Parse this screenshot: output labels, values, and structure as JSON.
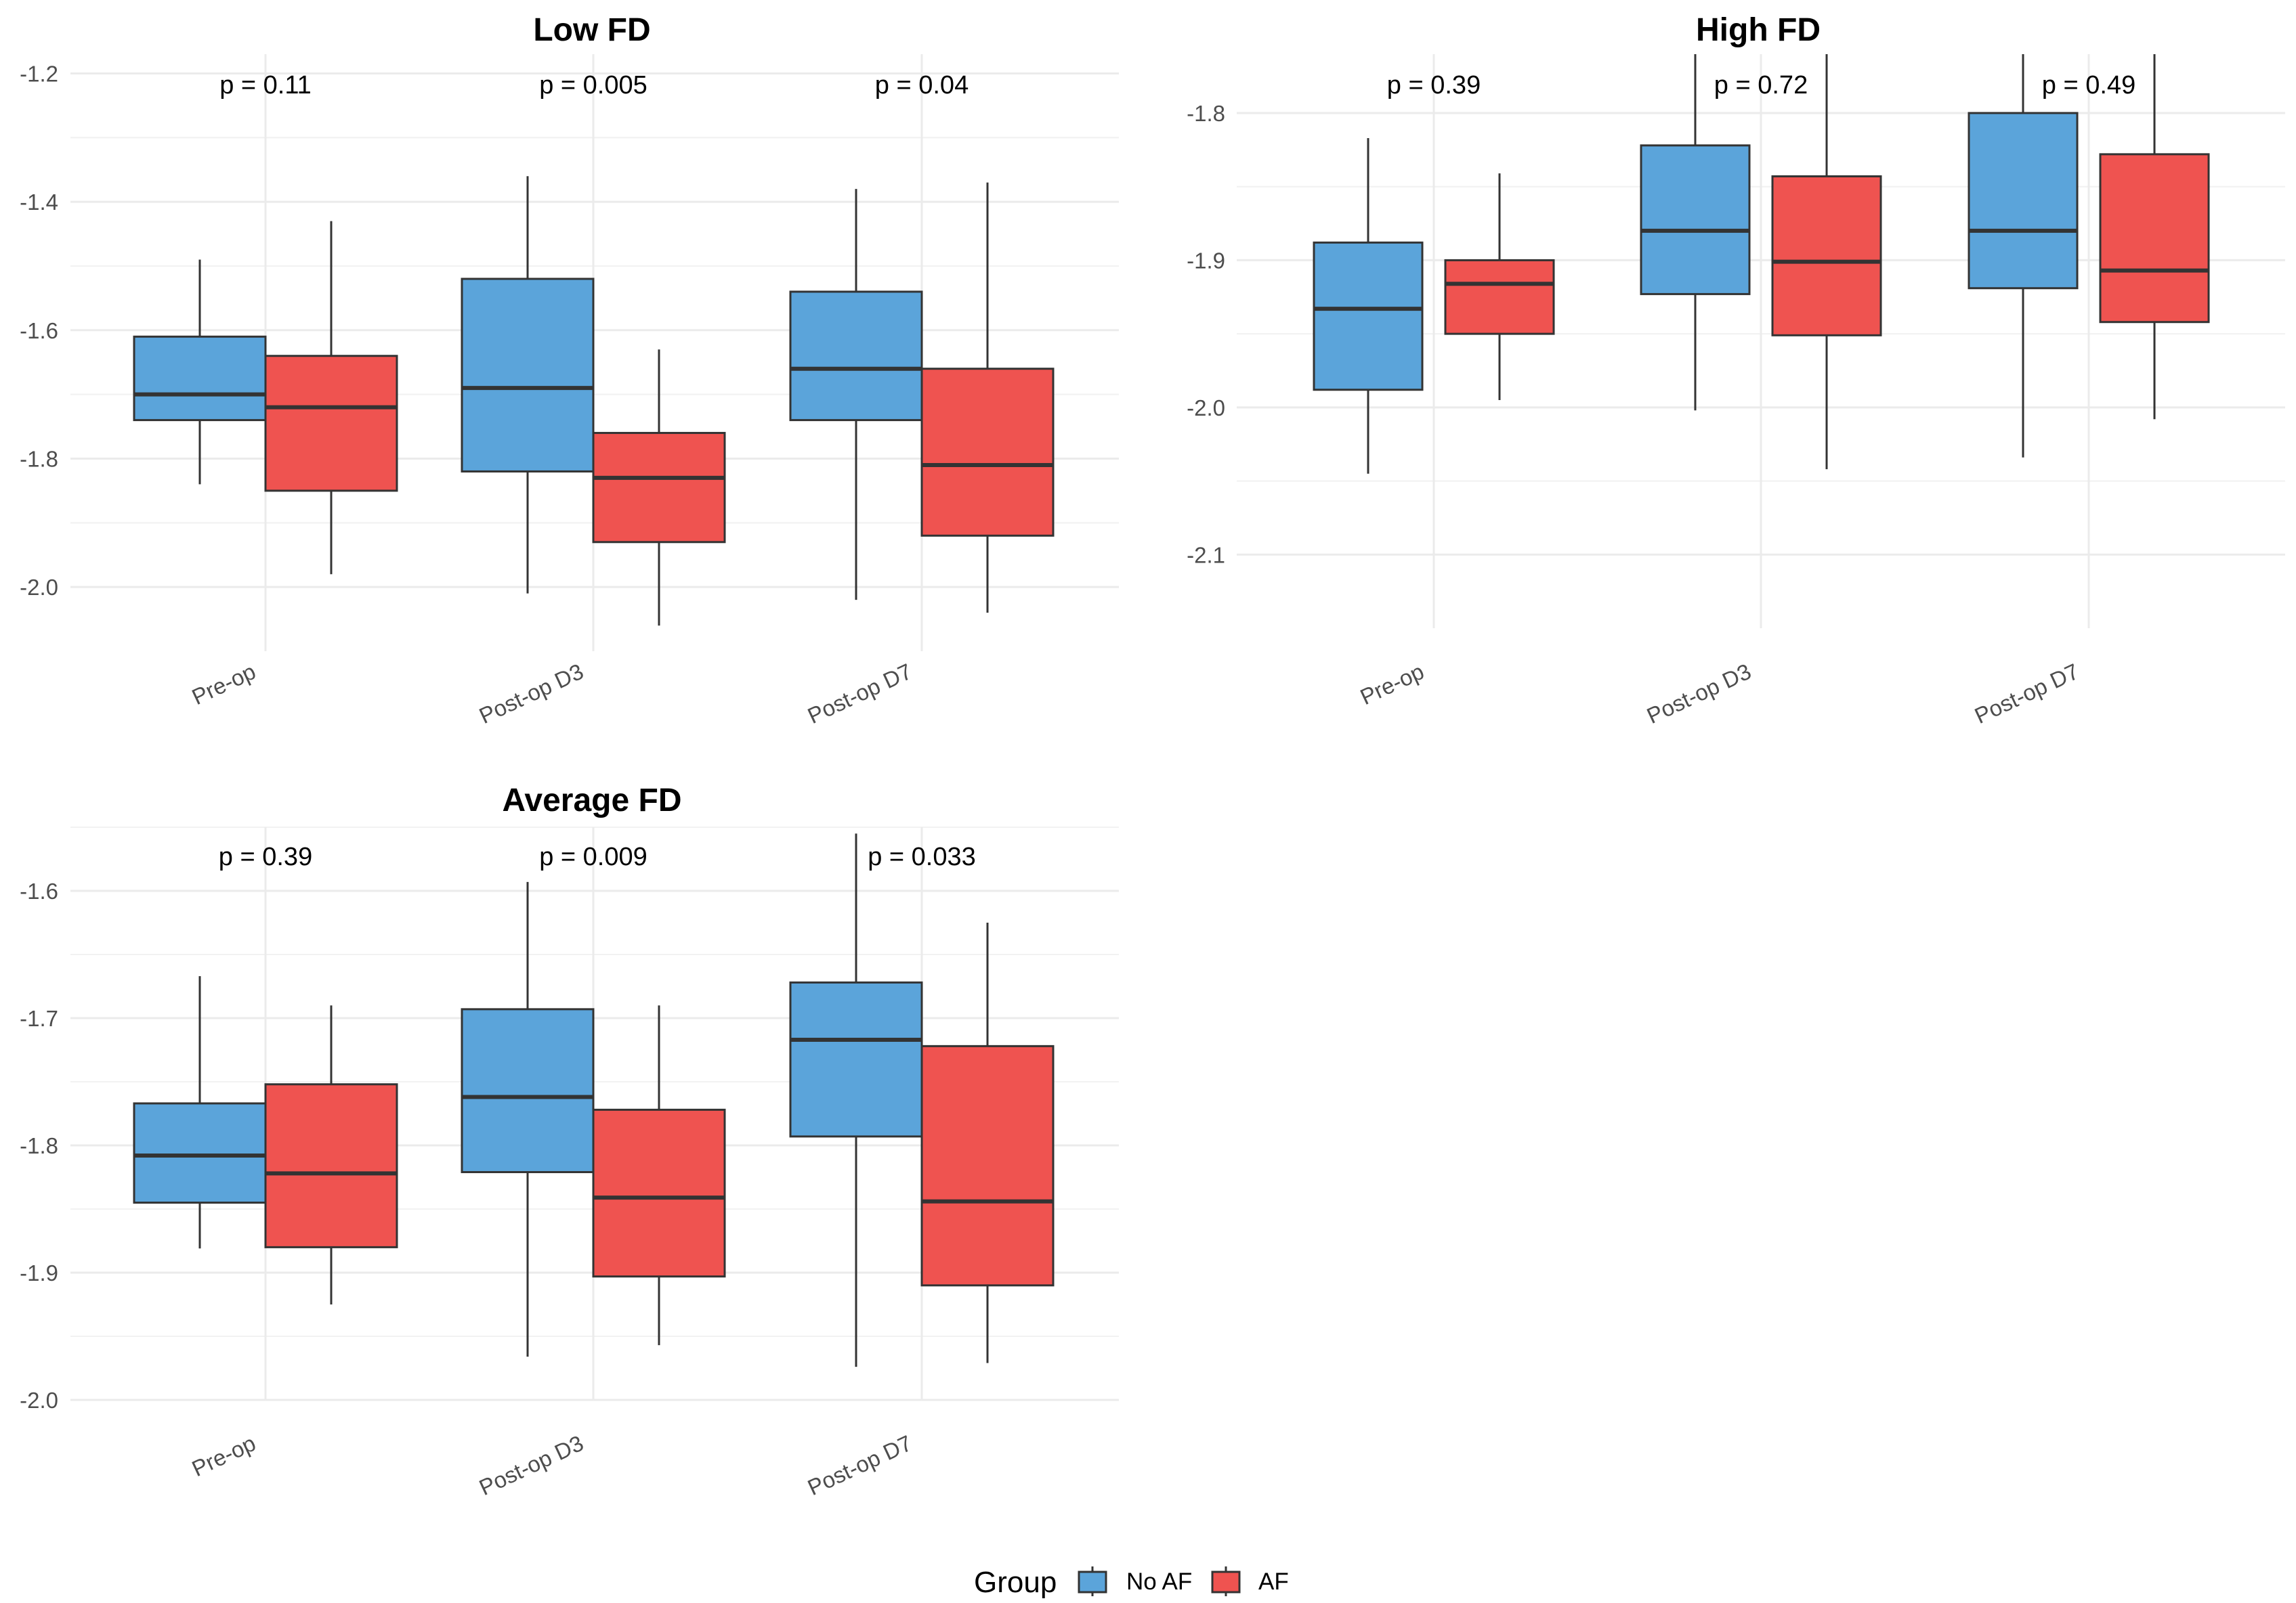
{
  "colors": {
    "no_af": "#5BA4DA",
    "af": "#EF5350",
    "grid": "#EBEBEB",
    "line": "#333333"
  },
  "chart_data": [
    {
      "type": "boxplot",
      "title": "Low FD",
      "categories": [
        "Pre-op",
        "Post-op D3",
        "Post-op D7"
      ],
      "ylim": [
        -2.1,
        -1.17
      ],
      "yticks": [
        -1.2,
        -1.4,
        -1.6,
        -1.8,
        -2.0
      ],
      "ytick_labels": [
        "-1.2",
        "-1.4",
        "-1.6",
        "-1.8",
        "-2.0"
      ],
      "pvalues": [
        "p = 0.11",
        "p = 0.005",
        "p = 0.04"
      ],
      "series": [
        {
          "name": "No AF",
          "boxes": [
            {
              "lower": -1.84,
              "q1": -1.74,
              "median": -1.7,
              "q3": -1.61,
              "upper": -1.49
            },
            {
              "lower": -2.01,
              "q1": -1.82,
              "median": -1.69,
              "q3": -1.52,
              "upper": -1.36
            },
            {
              "lower": -2.02,
              "q1": -1.74,
              "median": -1.66,
              "q3": -1.54,
              "upper": -1.38
            }
          ]
        },
        {
          "name": "AF",
          "boxes": [
            {
              "lower": -1.98,
              "q1": -1.85,
              "median": -1.72,
              "q3": -1.64,
              "upper": -1.43
            },
            {
              "lower": -2.06,
              "q1": -1.93,
              "median": -1.83,
              "q3": -1.76,
              "upper": -1.63
            },
            {
              "lower": -2.04,
              "q1": -1.92,
              "median": -1.81,
              "q3": -1.66,
              "upper": -1.37
            }
          ]
        }
      ]
    },
    {
      "type": "boxplot",
      "title": "High FD",
      "categories": [
        "Pre-op",
        "Post-op D3",
        "Post-op D7"
      ],
      "ylim": [
        -2.15,
        -1.76
      ],
      "yticks": [
        -1.8,
        -1.9,
        -2.0,
        -2.1
      ],
      "ytick_labels": [
        "-1.8",
        "-1.9",
        "-2.0",
        "-2.1"
      ],
      "pvalues": [
        "p = 0.39",
        "p = 0.72",
        "p = 0.49"
      ],
      "series": [
        {
          "name": "No AF",
          "boxes": [
            {
              "lower": -2.045,
              "q1": -1.988,
              "median": -1.933,
              "q3": -1.888,
              "upper": -1.817
            },
            {
              "lower": -2.002,
              "q1": -1.923,
              "median": -1.88,
              "q3": -1.822,
              "upper": -1.76
            },
            {
              "lower": -2.034,
              "q1": -1.919,
              "median": -1.88,
              "q3": -1.8,
              "upper": -1.76
            }
          ]
        },
        {
          "name": "AF",
          "boxes": [
            {
              "lower": -1.995,
              "q1": -1.95,
              "median": -1.916,
              "q3": -1.9,
              "upper": -1.841
            },
            {
              "lower": -2.042,
              "q1": -1.951,
              "median": -1.901,
              "q3": -1.843,
              "upper": -1.76
            },
            {
              "lower": -2.008,
              "q1": -1.942,
              "median": -1.907,
              "q3": -1.828,
              "upper": -1.76
            }
          ]
        }
      ]
    },
    {
      "type": "boxplot",
      "title": "Average FD",
      "categories": [
        "Pre-op",
        "Post-op D3",
        "Post-op D7"
      ],
      "ylim": [
        -2.0,
        -1.55
      ],
      "yticks": [
        -1.6,
        -1.7,
        -1.8,
        -1.9,
        -2.0
      ],
      "ytick_labels": [
        "-1.6",
        "-1.7",
        "-1.8",
        "-1.9",
        "-2.0"
      ],
      "pvalues": [
        "p = 0.39",
        "p = 0.009",
        "p = 0.033"
      ],
      "series": [
        {
          "name": "No AF",
          "boxes": [
            {
              "lower": -1.881,
              "q1": -1.845,
              "median": -1.808,
              "q3": -1.767,
              "upper": -1.667
            },
            {
              "lower": -1.966,
              "q1": -1.821,
              "median": -1.762,
              "q3": -1.693,
              "upper": -1.593
            },
            {
              "lower": -1.974,
              "q1": -1.793,
              "median": -1.717,
              "q3": -1.672,
              "upper": -1.555
            }
          ]
        },
        {
          "name": "AF",
          "boxes": [
            {
              "lower": -1.925,
              "q1": -1.88,
              "median": -1.822,
              "q3": -1.752,
              "upper": -1.69
            },
            {
              "lower": -1.957,
              "q1": -1.903,
              "median": -1.841,
              "q3": -1.772,
              "upper": -1.69
            },
            {
              "lower": -1.971,
              "q1": -1.91,
              "median": -1.844,
              "q3": -1.722,
              "upper": -1.625
            }
          ]
        }
      ]
    }
  ],
  "legend": {
    "title": "Group",
    "items": [
      "No AF",
      "AF"
    ]
  }
}
